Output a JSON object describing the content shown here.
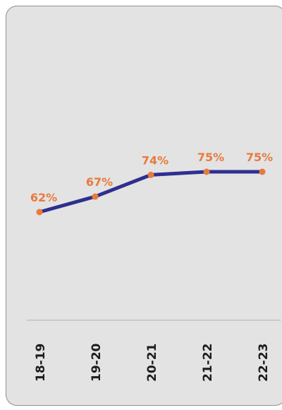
{
  "chart_data": {
    "type": "line",
    "categories": [
      "18-19",
      "19-20",
      "20-21",
      "21-22",
      "22-23"
    ],
    "series": [
      {
        "values": [
          62,
          67,
          74,
          75,
          75
        ],
        "labels": [
          "62%",
          "67%",
          "74%",
          "75%",
          "75%"
        ],
        "color": "#2e2f8e"
      }
    ],
    "marker_color": "#e87a3c",
    "data_label_color": "#e87a3c",
    "background_color": "#e3e3e3",
    "axis_color": "#b0b0b0",
    "title": "",
    "xlabel": "",
    "ylabel": "",
    "grid": false
  }
}
